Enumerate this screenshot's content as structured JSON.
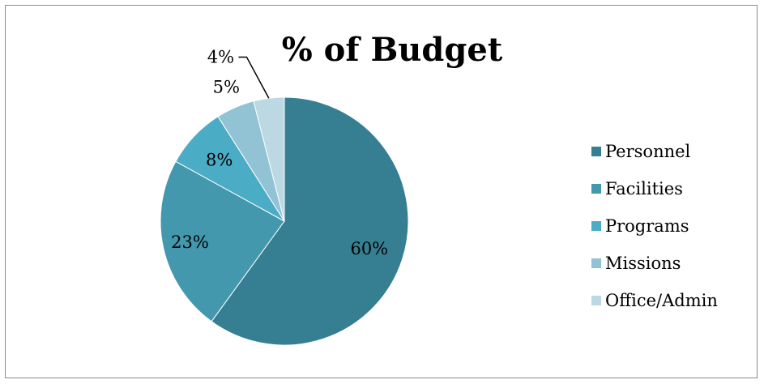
{
  "chart_data": {
    "type": "pie",
    "title": "% of Budget",
    "categories": [
      "Personnel",
      "Facilities",
      "Programs",
      "Missions",
      "Office/Admin"
    ],
    "values": [
      60,
      23,
      8,
      5,
      4
    ],
    "labels": [
      "60%",
      "23%",
      "8%",
      "5%",
      "4%"
    ],
    "colors": [
      "#367f93",
      "#4398ae",
      "#4bacc6",
      "#92c3d4",
      "#bcd8e3"
    ],
    "start_angle_deg": 0,
    "direction": "clockwise",
    "legend_position": "right"
  }
}
